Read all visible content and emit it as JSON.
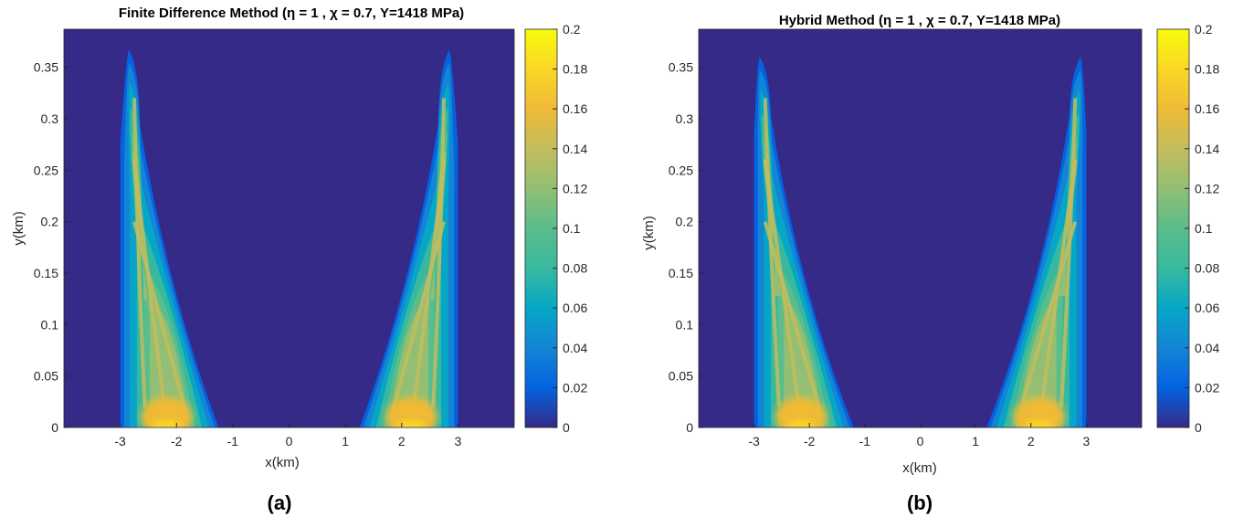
{
  "chart_data": [
    {
      "type": "heatmap",
      "title": "Finite Difference Method (η = 1 , χ = 0.7, Y=1418 MPa)",
      "xlabel": "x(km)",
      "ylabel": "y(km)",
      "panel_label": "(a)",
      "xlim": [
        -4,
        4
      ],
      "ylim": [
        0,
        0.387
      ],
      "x_ticks": [
        -3,
        -2,
        -1,
        0,
        1,
        2,
        3
      ],
      "x_tick_labels": [
        "-3",
        "-2",
        "-1",
        "0",
        "1",
        "2",
        "3"
      ],
      "y_ticks": [
        0,
        0.05,
        0.1,
        0.15,
        0.2,
        0.25,
        0.3,
        0.35
      ],
      "y_tick_labels": [
        "0",
        "0.05",
        "0.1",
        "0.15",
        "0.2",
        "0.25",
        "0.3",
        "0.35"
      ],
      "colorbar": {
        "colormap": "parula",
        "range": [
          0,
          0.2
        ],
        "ticks": [
          0,
          0.02,
          0.04,
          0.06,
          0.08,
          0.1,
          0.12,
          0.14,
          0.16,
          0.18,
          0.2
        ],
        "tick_labels": [
          "0",
          "0.02",
          "0.04",
          "0.06",
          "0.08",
          "0.1",
          "0.12",
          "0.14",
          "0.16",
          "0.18",
          "0.2"
        ]
      },
      "lobes": [
        {
          "side": "left",
          "outer_base_x": -3.0,
          "inner_base_x": -1.25,
          "peak_x": -2.85,
          "peak_y": 0.367,
          "shoulder_y": 0.29
        },
        {
          "side": "right",
          "outer_base_x": 3.0,
          "inner_base_x": 1.25,
          "peak_x": 2.85,
          "peak_y": 0.367,
          "shoulder_y": 0.29
        }
      ]
    },
    {
      "type": "heatmap",
      "title": "Hybrid Method (η = 1 , χ = 0.7, Y=1418 MPa)",
      "xlabel": "x(km)",
      "ylabel": "y(km)",
      "panel_label": "(b)",
      "xlim": [
        -4,
        4
      ],
      "ylim": [
        0,
        0.387
      ],
      "x_ticks": [
        -3,
        -2,
        -1,
        0,
        1,
        2,
        3
      ],
      "x_tick_labels": [
        "-3",
        "-2",
        "-1",
        "0",
        "1",
        "2",
        "3"
      ],
      "y_ticks": [
        0,
        0.05,
        0.1,
        0.15,
        0.2,
        0.25,
        0.3,
        0.35
      ],
      "y_tick_labels": [
        "0",
        "0.05",
        "0.1",
        "0.15",
        "0.2",
        "0.25",
        "0.3",
        "0.35"
      ],
      "colorbar": {
        "colormap": "parula",
        "range": [
          0,
          0.2
        ],
        "ticks": [
          0,
          0.02,
          0.04,
          0.06,
          0.08,
          0.1,
          0.12,
          0.14,
          0.16,
          0.18,
          0.2
        ],
        "tick_labels": [
          "0",
          "0.02",
          "0.04",
          "0.06",
          "0.08",
          "0.1",
          "0.12",
          "0.14",
          "0.16",
          "0.18",
          "0.2"
        ]
      },
      "lobes": [
        {
          "side": "left",
          "outer_base_x": -3.0,
          "inner_base_x": -1.2,
          "peak_x": -2.9,
          "peak_y": 0.36,
          "shoulder_y": 0.3
        },
        {
          "side": "right",
          "outer_base_x": 3.0,
          "inner_base_x": 1.2,
          "peak_x": 2.9,
          "peak_y": 0.36,
          "shoulder_y": 0.3
        }
      ]
    }
  ]
}
